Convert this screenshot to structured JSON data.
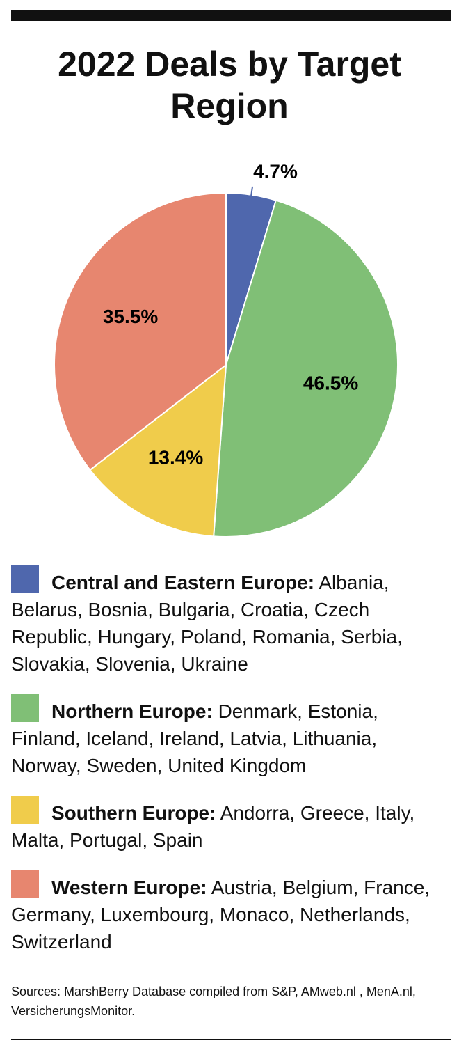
{
  "chart_data": {
    "type": "pie",
    "title": "2022 Deals by Target Region",
    "categories": [
      "Central and Eastern Europe:",
      "Northern Europe:",
      "Southern Europe:",
      "Western Europe:"
    ],
    "descriptions": [
      "Albania, Belarus, Bosnia, Bulgaria, Croatia, Czech Republic, Hungary, Poland, Romania, Serbia, Slovakia, Slovenia, Ukraine",
      "Denmark, Estonia, Finland, Iceland, Ireland, Latvia, Lithuania, Norway, Sweden, United Kingdom",
      "Andorra, Greece, Italy, Malta, Portugal, Spain",
      "Austria, Belgium, France, Germany, Luxembourg, Monaco, Netherlands, Switzerland"
    ],
    "values": [
      4.7,
      46.5,
      13.4,
      35.5
    ],
    "value_labels": [
      "4.7%",
      "46.5%",
      "13.4%",
      "35.5%"
    ],
    "colors": [
      "#4f67ad",
      "#80bf76",
      "#f0cc4b",
      "#e7866f"
    ],
    "sources": "Sources: MarshBerry Database compiled from S&P, AMweb.nl , MenA.nl, VersicherungsMonitor."
  }
}
